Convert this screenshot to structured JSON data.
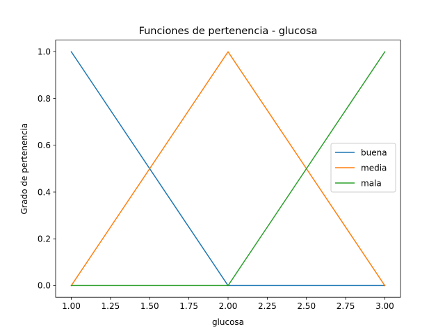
{
  "chart_data": {
    "type": "line",
    "title": "Funciones de pertenencia - glucosa",
    "xlabel": "glucosa",
    "ylabel": "Grado de pertenencia",
    "xlim": [
      0.9,
      3.1
    ],
    "ylim": [
      -0.05,
      1.05
    ],
    "xticks": [
      1.0,
      1.25,
      1.5,
      1.75,
      2.0,
      2.25,
      2.5,
      2.75,
      3.0
    ],
    "xtick_labels": [
      "1.00",
      "1.25",
      "1.50",
      "1.75",
      "2.00",
      "2.25",
      "2.50",
      "2.75",
      "3.00"
    ],
    "yticks": [
      0.0,
      0.2,
      0.4,
      0.6,
      0.8,
      1.0
    ],
    "ytick_labels": [
      "0.0",
      "0.2",
      "0.4",
      "0.6",
      "0.8",
      "1.0"
    ],
    "grid": false,
    "legend_position": "center-right",
    "series": [
      {
        "name": "buena",
        "color": "#1f77b4",
        "x": [
          1.0,
          2.0,
          3.0
        ],
        "y": [
          1.0,
          0.0,
          0.0
        ]
      },
      {
        "name": "media",
        "color": "#ff7f0e",
        "x": [
          1.0,
          2.0,
          3.0
        ],
        "y": [
          0.0,
          1.0,
          0.0
        ]
      },
      {
        "name": "mala",
        "color": "#2ca02c",
        "x": [
          1.0,
          2.0,
          3.0
        ],
        "y": [
          0.0,
          0.0,
          1.0
        ]
      }
    ]
  }
}
